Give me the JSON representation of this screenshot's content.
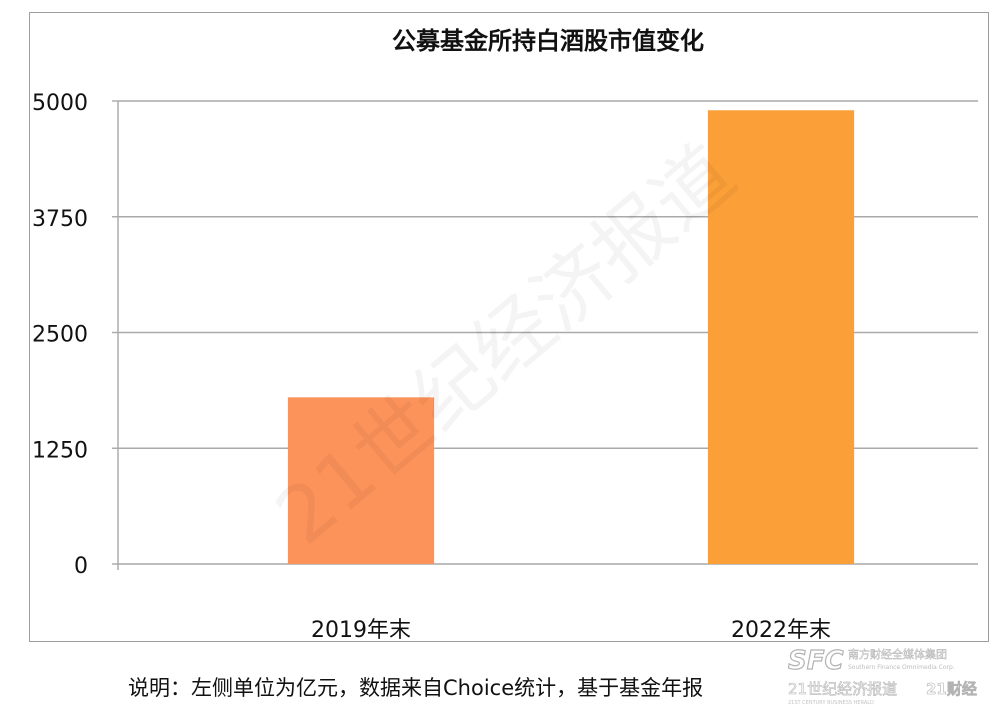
{
  "chart_data": {
    "type": "bar",
    "title": "公募基金所持白酒股市值变化",
    "categories": [
      "2019年末",
      "2022年末"
    ],
    "series": [
      {
        "values": [
          1800,
          4900
        ],
        "colors": [
          "#fc935b",
          "#fb9f38"
        ]
      }
    ],
    "ylim": [
      0,
      5000
    ],
    "yticks": [
      0,
      1250,
      2500,
      3750,
      5000
    ],
    "grid": true,
    "gridColor": "#a9a9a9"
  },
  "note": "说明：左侧单位为亿元，数据来自Choice统计，基于基金年报",
  "watermark": "21世纪经济报道",
  "logo": {
    "mark": "SFC",
    "group": "南方财经全媒体集团",
    "group_en": "Southern Finance Omnimedia Corp.",
    "brand1": "21世纪经济报道",
    "brand1_en": "21ST CENTURY BUSINESS HERALD",
    "brand2": "21财经"
  }
}
